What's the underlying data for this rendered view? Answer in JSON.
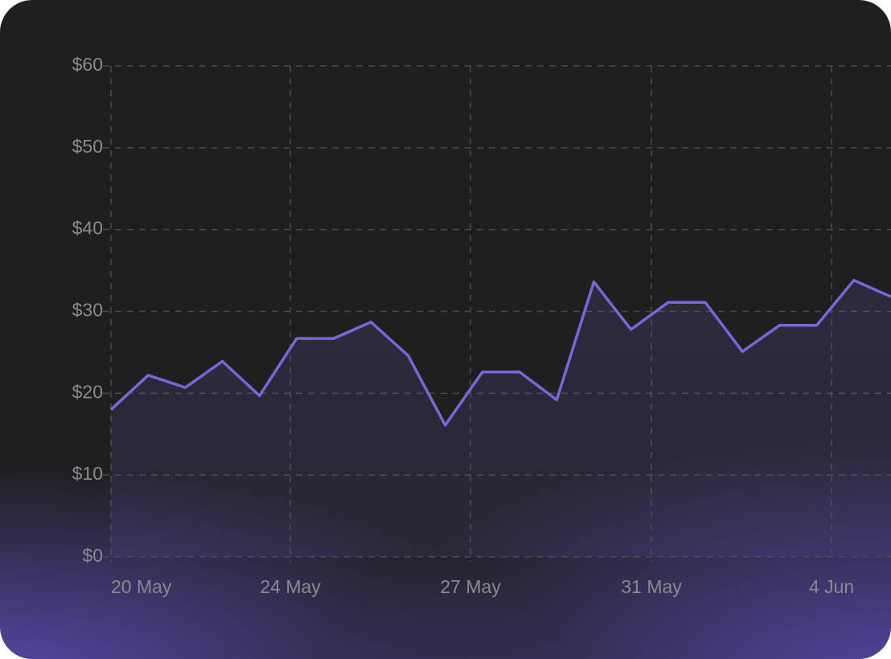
{
  "chart_data": {
    "type": "line",
    "values": [
      18,
      22.2,
      20.7,
      23.9,
      19.7,
      26.7,
      26.7,
      28.7,
      24.6,
      16.1,
      22.6,
      22.6,
      19.2,
      33.6,
      27.8,
      31.1,
      31.1,
      25.1,
      28.3,
      28.3,
      33.8,
      31.8
    ],
    "color": "#7866dc",
    "xlim": [
      0,
      21
    ],
    "xticks": [
      {
        "value": 0,
        "label": "20 May"
      },
      {
        "value": 4.83,
        "label": "24 May"
      },
      {
        "value": 9.68,
        "label": "27 May"
      },
      {
        "value": 14.55,
        "label": "31 May"
      },
      {
        "value": 19.4,
        "label": "4 Jun"
      }
    ],
    "ylim": [
      0,
      60
    ],
    "yticks": [
      {
        "value": 0,
        "label": "$0"
      },
      {
        "value": 10,
        "label": "$10"
      },
      {
        "value": 20,
        "label": "$20"
      },
      {
        "value": 30,
        "label": "$30"
      },
      {
        "value": 40,
        "label": "$40"
      },
      {
        "value": 50,
        "label": "$50"
      },
      {
        "value": 60,
        "label": "$60"
      }
    ],
    "grid": true
  }
}
